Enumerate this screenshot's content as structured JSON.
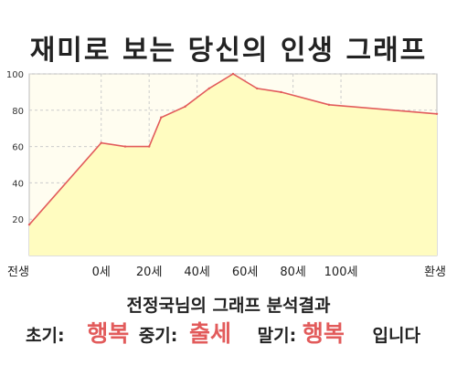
{
  "title": "재미로 보는 당신의 인생 그래프",
  "subtitle": "전정국님의 그래프 분석결과",
  "result": {
    "early_label": "초기:",
    "early_value": "행복",
    "mid_label": "중기:",
    "mid_value": "출세",
    "late_label": "말기:",
    "late_value": "행복",
    "suffix": "입니다"
  },
  "colors": {
    "line": "#e25b5b",
    "area": "#fffcc0",
    "plot_bg": "#fffdf0",
    "highlight": "#e25b5b"
  },
  "chart_data": {
    "type": "area",
    "x_tick_labels": [
      "전생",
      "0세",
      "20세",
      "40세",
      "60세",
      "80세",
      "100세",
      "환생"
    ],
    "y_ticks": [
      20,
      40,
      60,
      80,
      100
    ],
    "ylim": [
      0,
      100
    ],
    "grid": true,
    "points": [
      {
        "x": "전생",
        "y": 17
      },
      {
        "x": "0세",
        "y": 62
      },
      {
        "x": "10세",
        "y": 60
      },
      {
        "x": "20세",
        "y": 60
      },
      {
        "x": "25세",
        "y": 76
      },
      {
        "x": "35세",
        "y": 82
      },
      {
        "x": "45세",
        "y": 92
      },
      {
        "x": "55세",
        "y": 100
      },
      {
        "x": "65세",
        "y": 92
      },
      {
        "x": "75세",
        "y": 90
      },
      {
        "x": "95세",
        "y": 83
      },
      {
        "x": "환생",
        "y": 78
      }
    ]
  }
}
